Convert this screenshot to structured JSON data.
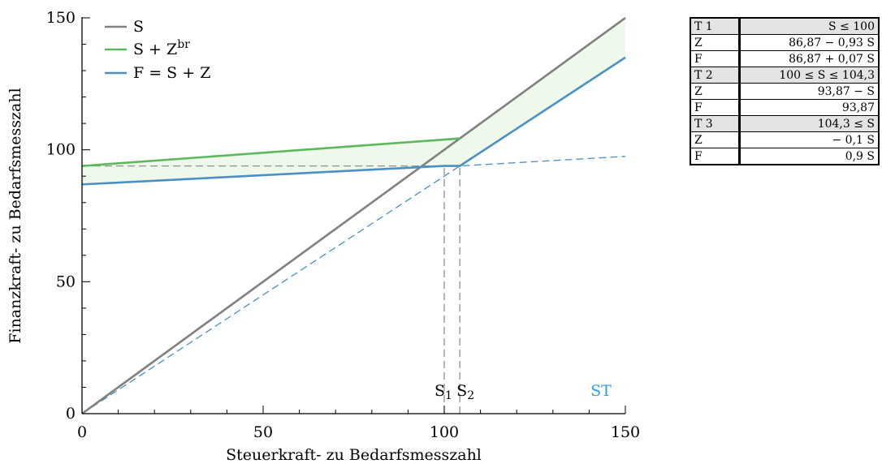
{
  "chart_data": {
    "type": "line",
    "title": "",
    "xlabel": "Steuerkraft- zu Bedarfsmesszahl",
    "ylabel": "Finanzkraft- zu Bedarfsmesszahl",
    "xlim": [
      0,
      150
    ],
    "ylim": [
      0,
      150
    ],
    "xticks": [
      0,
      50,
      100,
      150
    ],
    "yticks": [
      0,
      50,
      100,
      150
    ],
    "grid": false,
    "legend_position": "top-left",
    "series": [
      {
        "name": "S",
        "color": "#808080",
        "style": "solid",
        "x": [
          0,
          150
        ],
        "y": [
          0,
          150
        ]
      },
      {
        "name": "S + Z",
        "name_sup": "br",
        "color": "#5cb85c",
        "style": "solid",
        "x": [
          0,
          104.3
        ],
        "y": [
          93.87,
          104.3
        ]
      },
      {
        "name": "F = S + Z",
        "color": "#4a90c4",
        "style": "solid",
        "x": [
          0,
          100,
          104.3,
          150
        ],
        "y": [
          86.87,
          93.87,
          93.87,
          135
        ]
      }
    ],
    "extra_lines": [
      {
        "kind": "helper-dashed",
        "color": "#4a90c4",
        "x": [
          0,
          104.3,
          150
        ],
        "y": [
          0,
          93.87,
          97.5
        ]
      },
      {
        "kind": "reference-dashed",
        "color": "#909090",
        "x": [
          0,
          104.3
        ],
        "y": [
          93.87,
          93.87
        ]
      },
      {
        "kind": "reference-dashed",
        "color": "#909090",
        "x": [
          100,
          100
        ],
        "y": [
          0,
          93.87
        ]
      },
      {
        "kind": "reference-dashed",
        "color": "#909090",
        "x": [
          104.3,
          104.3
        ],
        "y": [
          0,
          93.87
        ]
      }
    ],
    "shaded_region": {
      "color": "#eef9ec",
      "between": [
        "S + Z / F = S + Z",
        "S"
      ]
    },
    "annotations": [
      {
        "text": "S",
        "sub": "1",
        "x": 100
      },
      {
        "text": "S",
        "sub": "2",
        "x": 104.3
      },
      {
        "text": "ST",
        "color": "#2e9fd6"
      }
    ]
  },
  "table": {
    "rows": [
      {
        "head": true,
        "c1": "T 1",
        "c2": "S ≤ 100"
      },
      {
        "head": false,
        "c1": "Z",
        "c2": "86,87 − 0,93 S"
      },
      {
        "head": false,
        "c1": "F",
        "c2": "86,87 + 0,07 S"
      },
      {
        "head": true,
        "c1": "T 2",
        "c2": "100 ≤ S ≤ 104,3"
      },
      {
        "head": false,
        "c1": "Z",
        "c2": "93,87 − S"
      },
      {
        "head": false,
        "c1": "F",
        "c2": "93,87"
      },
      {
        "head": true,
        "c1": "T 3",
        "c2": "104,3 ≤ S"
      },
      {
        "head": false,
        "c1": "Z",
        "c2": "− 0,1 S"
      },
      {
        "head": false,
        "c1": "F",
        "c2": "0,9 S"
      }
    ]
  }
}
